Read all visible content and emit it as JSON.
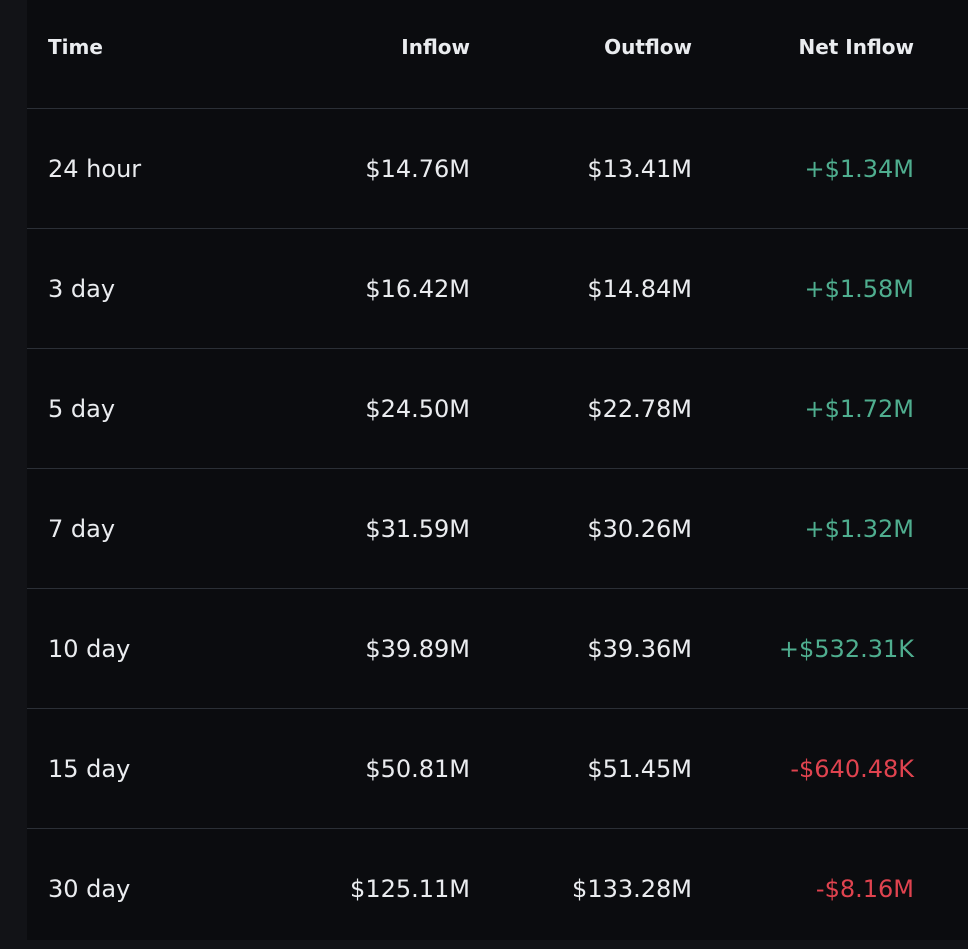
{
  "table": {
    "headers": {
      "time": "Time",
      "inflow": "Inflow",
      "outflow": "Outflow",
      "net_inflow": "Net Inflow"
    },
    "rows": [
      {
        "time": "24 hour",
        "inflow": "$14.76M",
        "outflow": "$13.41M",
        "net_inflow": "+$1.34M",
        "direction": "positive"
      },
      {
        "time": "3 day",
        "inflow": "$16.42M",
        "outflow": "$14.84M",
        "net_inflow": "+$1.58M",
        "direction": "positive"
      },
      {
        "time": "5 day",
        "inflow": "$24.50M",
        "outflow": "$22.78M",
        "net_inflow": "+$1.72M",
        "direction": "positive"
      },
      {
        "time": "7 day",
        "inflow": "$31.59M",
        "outflow": "$30.26M",
        "net_inflow": "+$1.32M",
        "direction": "positive"
      },
      {
        "time": "10 day",
        "inflow": "$39.89M",
        "outflow": "$39.36M",
        "net_inflow": "+$532.31K",
        "direction": "positive"
      },
      {
        "time": "15 day",
        "inflow": "$50.81M",
        "outflow": "$51.45M",
        "net_inflow": "-$640.48K",
        "direction": "negative"
      },
      {
        "time": "30 day",
        "inflow": "$125.11M",
        "outflow": "$133.28M",
        "net_inflow": "-$8.16M",
        "direction": "negative"
      }
    ]
  },
  "colors": {
    "positive": "#4fae8f",
    "negative": "#e0434f",
    "text": "#eaecef",
    "background": "#0b0c0f",
    "divider": "#2b2f36"
  }
}
